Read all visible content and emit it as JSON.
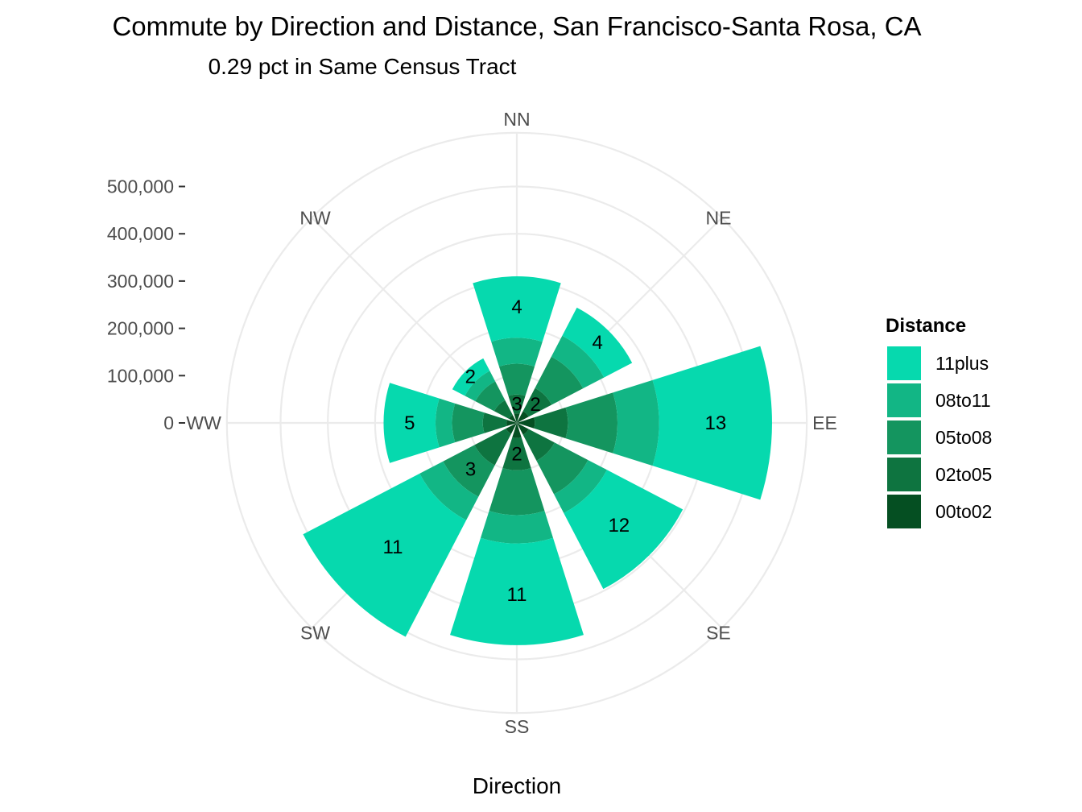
{
  "chart_data": {
    "type": "bar",
    "coordinate_system": "polar",
    "title": "Commute by Direction and Distance, San Francisco-Santa Rosa, CA",
    "subtitle": "0.29 pct in Same Census Tract",
    "xlabel": "Direction",
    "categories": [
      "NN",
      "NE",
      "EE",
      "SE",
      "SS",
      "SW",
      "WW",
      "NW"
    ],
    "radial_axis": {
      "ticks": [
        0,
        100000,
        200000,
        300000,
        400000,
        500000
      ],
      "tick_labels": [
        "0",
        "100,000",
        "200,000",
        "300,000",
        "400,000",
        "500,000"
      ],
      "range": [
        0,
        525000
      ]
    },
    "grid": true,
    "legend": {
      "title": "Distance",
      "placement": "right",
      "entries": [
        {
          "label": "11plus",
          "color": "#06d9ae"
        },
        {
          "label": "08to11",
          "color": "#12b685"
        },
        {
          "label": "05to08",
          "color": "#14955f"
        },
        {
          "label": "02to05",
          "color": "#0e7440"
        },
        {
          "label": "00to02",
          "color": "#054f22"
        }
      ]
    },
    "series": [
      {
        "name": "00to02",
        "color": "#054f22",
        "values": [
          20000,
          28000,
          38000,
          28000,
          32000,
          26000,
          22000,
          19000
        ]
      },
      {
        "name": "02to05",
        "color": "#0e7440",
        "values": [
          40000,
          55000,
          70000,
          62000,
          68000,
          75000,
          50000,
          35000
        ]
      },
      {
        "name": "05to08",
        "color": "#14955f",
        "values": [
          65000,
          75000,
          105000,
          80000,
          95000,
          75000,
          65000,
          45000
        ]
      },
      {
        "name": "08to11",
        "color": "#12b685",
        "values": [
          55000,
          50000,
          88000,
          45000,
          60000,
          56000,
          35000,
          25000
        ]
      },
      {
        "name": "11plus",
        "color": "#06d9ae",
        "values": [
          130000,
          67000,
          239000,
          181000,
          215000,
          278000,
          110000,
          30000
        ]
      }
    ],
    "totals": [
      310000,
      275000,
      540000,
      396000,
      470000,
      510000,
      282000,
      154000
    ],
    "segment_labels": [
      {
        "direction": "NN",
        "series": "11plus",
        "text": "4"
      },
      {
        "direction": "NN",
        "series": "02to05",
        "text": "3"
      },
      {
        "direction": "NE",
        "series": "11plus",
        "text": "4"
      },
      {
        "direction": "NE",
        "series": "02to05",
        "text": "2"
      },
      {
        "direction": "EE",
        "series": "11plus",
        "text": "13"
      },
      {
        "direction": "SE",
        "series": "11plus",
        "text": "12"
      },
      {
        "direction": "SS",
        "series": "11plus",
        "text": "11"
      },
      {
        "direction": "SS",
        "series": "02to05",
        "text": "2"
      },
      {
        "direction": "SW",
        "series": "11plus",
        "text": "11"
      },
      {
        "direction": "SW",
        "series": "05to08",
        "text": "3"
      },
      {
        "direction": "WW",
        "series": "11plus",
        "text": "5"
      },
      {
        "direction": "NW",
        "series": "11plus",
        "text": "2"
      }
    ]
  }
}
